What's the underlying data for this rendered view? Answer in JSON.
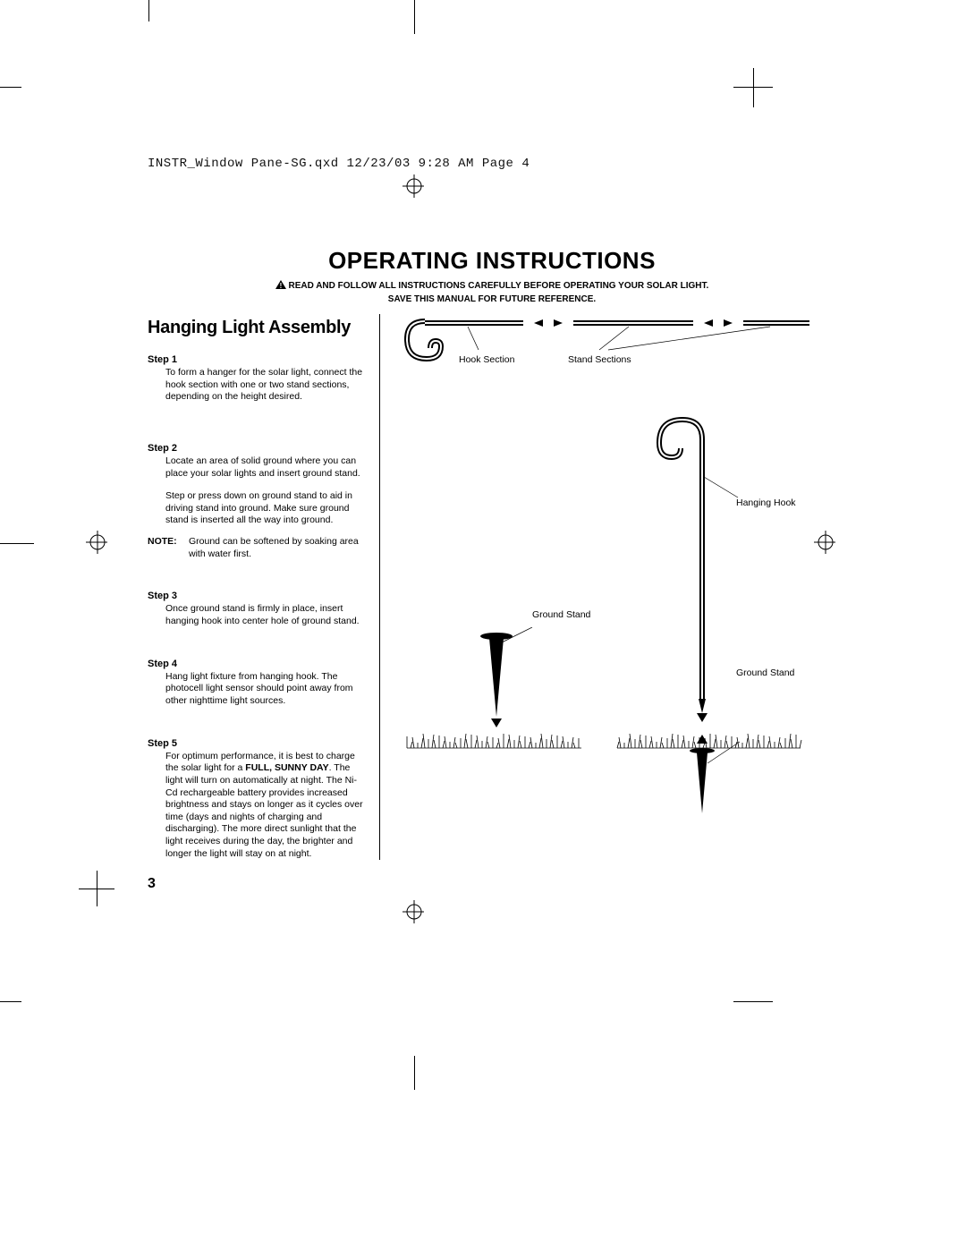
{
  "header": "INSTR_Window Pane-SG.qxd  12/23/03  9:28 AM  Page 4",
  "title": "OPERATING INSTRUCTIONS",
  "warning_line1": "READ AND FOLLOW ALL INSTRUCTIONS CAREFULLY BEFORE OPERATING YOUR SOLAR LIGHT.",
  "warning_line2": "SAVE THIS MANUAL FOR FUTURE REFERENCE.",
  "section_title": "Hanging Light Assembly",
  "page_number": "3",
  "steps": {
    "s1": {
      "label": "Step 1",
      "body": "To form a hanger for the solar light, connect the hook section with one or two stand sections, depending on the height desired."
    },
    "s2": {
      "label": "Step 2",
      "body1": "Locate an area of solid ground where you can place your solar lights and insert ground stand.",
      "body2": "Step or press down on ground stand to aid in driving stand into ground. Make sure ground stand is inserted all the way into ground."
    },
    "note": {
      "label": "NOTE:",
      "text": "Ground can be softened by soaking area with water first."
    },
    "s3": {
      "label": "Step 3",
      "body": "Once ground stand is firmly in place, insert hanging hook into center hole of ground stand."
    },
    "s4": {
      "label": "Step 4",
      "body": "Hang light fixture from hanging hook. The photocell light sensor should point away from other nighttime light sources."
    },
    "s5": {
      "label": "Step 5",
      "body_pre": "For optimum performance, it is best to charge the solar light for a ",
      "body_bold": "FULL, SUNNY DAY",
      "body_post": ". The light will turn on automatically at night. The Ni-Cd rechargeable battery provides increased brightness and stays on longer as it cycles over time (days and nights of charging and discharging). The more direct sunlight that the light receives during the day, the brighter and longer the light will stay on at night."
    }
  },
  "diagram": {
    "hook_section": "Hook Section",
    "stand_sections": "Stand Sections",
    "hanging_hook": "Hanging Hook",
    "ground_stand_left": "Ground Stand",
    "ground_stand_right": "Ground Stand",
    "colors": {
      "stroke": "#000000",
      "bg": "#ffffff"
    }
  }
}
